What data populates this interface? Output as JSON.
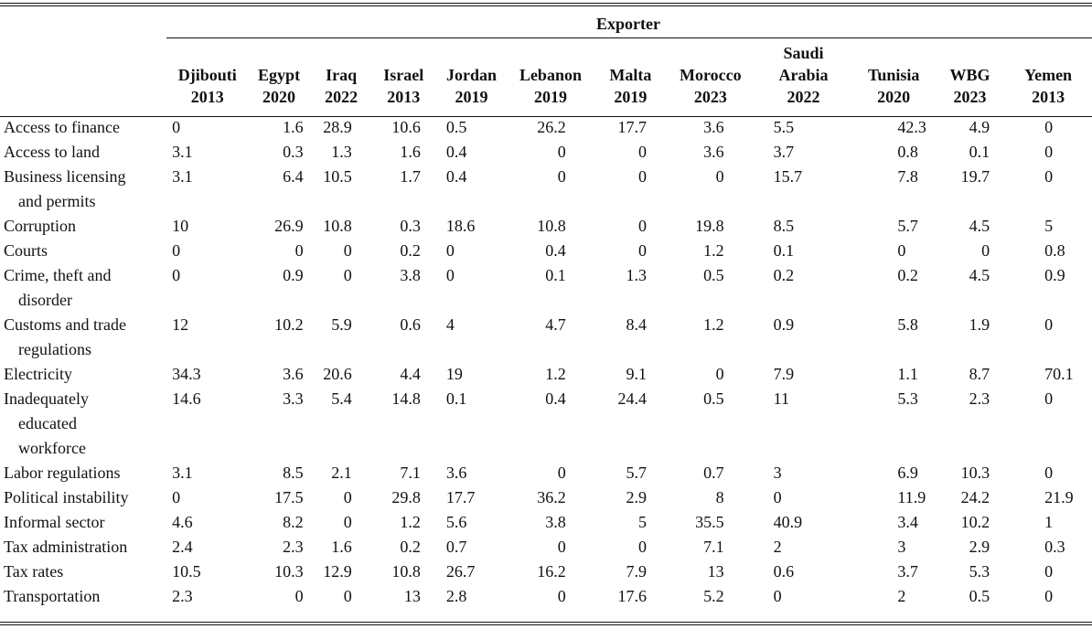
{
  "table": {
    "spanner": "Exporter",
    "columns": [
      {
        "name": "Djibouti",
        "year": "2013"
      },
      {
        "name": "Egypt",
        "year": "2020"
      },
      {
        "name": "Iraq",
        "year": "2022"
      },
      {
        "name": "Israel",
        "year": "2013"
      },
      {
        "name": "Jordan",
        "year": "2019"
      },
      {
        "name": "Lebanon",
        "year": "2019"
      },
      {
        "name": "Malta",
        "year": "2019"
      },
      {
        "name": "Morocco",
        "year": "2023"
      },
      {
        "name": "Saudi Arabia",
        "year": "2022"
      },
      {
        "name": "Tunisia",
        "year": "2020"
      },
      {
        "name": "WBG",
        "year": "2023"
      },
      {
        "name": "Yemen",
        "year": "2013"
      }
    ],
    "rows": [
      {
        "label": [
          "Access to finance"
        ],
        "values": [
          "0",
          "1.6",
          "28.9",
          "10.6",
          "0.5",
          "26.2",
          "17.7",
          "3.6",
          "5.5",
          "42.3",
          "4.9",
          "0"
        ]
      },
      {
        "label": [
          "Access to land"
        ],
        "values": [
          "3.1",
          "0.3",
          "1.3",
          "1.6",
          "0.4",
          "0",
          "0",
          "3.6",
          "3.7",
          "0.8",
          "0.1",
          "0"
        ]
      },
      {
        "label": [
          "Business licensing",
          "and permits"
        ],
        "values": [
          "3.1",
          "6.4",
          "10.5",
          "1.7",
          "0.4",
          "0",
          "0",
          "0",
          "15.7",
          "7.8",
          "19.7",
          "0"
        ]
      },
      {
        "label": [
          "Corruption"
        ],
        "values": [
          "10",
          "26.9",
          "10.8",
          "0.3",
          "18.6",
          "10.8",
          "0",
          "19.8",
          "8.5",
          "5.7",
          "4.5",
          "5"
        ]
      },
      {
        "label": [
          "Courts"
        ],
        "values": [
          "0",
          "0",
          "0",
          "0.2",
          "0",
          "0.4",
          "0",
          "1.2",
          "0.1",
          "0",
          "0",
          "0.8"
        ]
      },
      {
        "label": [
          "Crime, theft and",
          "disorder"
        ],
        "values": [
          "0",
          "0.9",
          "0",
          "3.8",
          "0",
          "0.1",
          "1.3",
          "0.5",
          "0.2",
          "0.2",
          "4.5",
          "0.9"
        ]
      },
      {
        "label": [
          "Customs and trade",
          "regulations"
        ],
        "values": [
          "12",
          "10.2",
          "5.9",
          "0.6",
          "4",
          "4.7",
          "8.4",
          "1.2",
          "0.9",
          "5.8",
          "1.9",
          "0"
        ]
      },
      {
        "label": [
          "Electricity"
        ],
        "values": [
          "34.3",
          "3.6",
          "20.6",
          "4.4",
          "19",
          "1.2",
          "9.1",
          "0",
          "7.9",
          "1.1",
          "8.7",
          "70.1"
        ]
      },
      {
        "label": [
          "Inadequately",
          "educated",
          "workforce"
        ],
        "values": [
          "14.6",
          "3.3",
          "5.4",
          "14.8",
          "0.1",
          "0.4",
          "24.4",
          "0.5",
          "11",
          "5.3",
          "2.3",
          "0"
        ]
      },
      {
        "label": [
          "Labor regulations"
        ],
        "values": [
          "3.1",
          "8.5",
          "2.1",
          "7.1",
          "3.6",
          "0",
          "5.7",
          "0.7",
          "3",
          "6.9",
          "10.3",
          "0"
        ]
      },
      {
        "label": [
          "Political instability"
        ],
        "values": [
          "0",
          "17.5",
          "0",
          "29.8",
          "17.7",
          "36.2",
          "2.9",
          "8",
          "0",
          "11.9",
          "24.2",
          "21.9"
        ]
      },
      {
        "label": [
          "Informal sector"
        ],
        "values": [
          "4.6",
          "8.2",
          "0",
          "1.2",
          "5.6",
          "3.8",
          "5",
          "35.5",
          "40.9",
          "3.4",
          "10.2",
          "1"
        ]
      },
      {
        "label": [
          "Tax administration"
        ],
        "values": [
          "2.4",
          "2.3",
          "1.6",
          "0.2",
          "0.7",
          "0",
          "0",
          "7.1",
          "2",
          "3",
          "2.9",
          "0.3"
        ]
      },
      {
        "label": [
          "Tax rates"
        ],
        "values": [
          "10.5",
          "10.3",
          "12.9",
          "10.8",
          "26.7",
          "16.2",
          "7.9",
          "13",
          "0.6",
          "3.7",
          "5.3",
          "0"
        ]
      },
      {
        "label": [
          "Transportation"
        ],
        "values": [
          "2.3",
          "0",
          "0",
          "13",
          "2.8",
          "0",
          "17.6",
          "5.2",
          "0",
          "2",
          "0.5",
          "0"
        ]
      }
    ]
  }
}
